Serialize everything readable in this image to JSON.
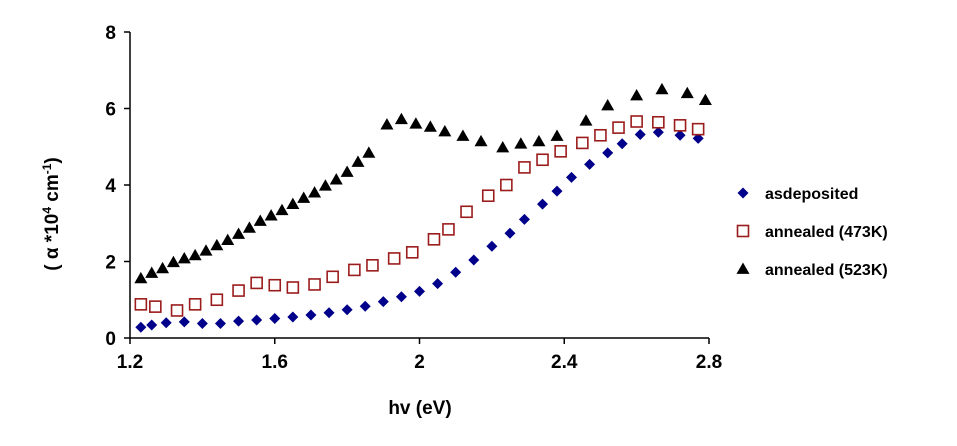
{
  "chart_data": {
    "type": "scatter",
    "xlabel": "hv (eV)",
    "ylabel": {
      "prefix": "( α *10",
      "sup1": "4",
      "mid": " cm",
      "sup2": "-1",
      "suffix": ")"
    },
    "xlim": [
      1.2,
      2.8
    ],
    "ylim": [
      0,
      8
    ],
    "xticks": [
      "1.2",
      "1.6",
      "2",
      "2.4",
      "2.8"
    ],
    "xtick_values": [
      1.2,
      1.6,
      2.0,
      2.4,
      2.8
    ],
    "yticks": [
      "0",
      "2",
      "4",
      "6",
      "8"
    ],
    "ytick_values": [
      0,
      2,
      4,
      6,
      8
    ],
    "grid": false,
    "legend_position": "right",
    "series": [
      {
        "name": "asdeposited",
        "marker": "diamond",
        "color": "#00008B",
        "x": [
          1.23,
          1.26,
          1.3,
          1.35,
          1.4,
          1.45,
          1.5,
          1.55,
          1.6,
          1.65,
          1.7,
          1.75,
          1.8,
          1.85,
          1.9,
          1.95,
          2.0,
          2.05,
          2.1,
          2.15,
          2.2,
          2.25,
          2.29,
          2.34,
          2.38,
          2.42,
          2.47,
          2.52,
          2.56,
          2.61,
          2.66,
          2.72,
          2.77
        ],
        "y": [
          0.28,
          0.34,
          0.4,
          0.42,
          0.38,
          0.38,
          0.44,
          0.47,
          0.51,
          0.55,
          0.6,
          0.66,
          0.74,
          0.83,
          0.95,
          1.08,
          1.22,
          1.42,
          1.72,
          2.04,
          2.4,
          2.74,
          3.1,
          3.5,
          3.84,
          4.2,
          4.54,
          4.84,
          5.08,
          5.32,
          5.38,
          5.3,
          5.22
        ]
      },
      {
        "name": "annealed (473K)",
        "marker": "square-open",
        "color": "#9B1C1C",
        "x": [
          1.23,
          1.27,
          1.33,
          1.38,
          1.44,
          1.5,
          1.55,
          1.6,
          1.65,
          1.71,
          1.76,
          1.82,
          1.87,
          1.93,
          1.98,
          2.04,
          2.08,
          2.13,
          2.19,
          2.24,
          2.29,
          2.34,
          2.39,
          2.45,
          2.5,
          2.55,
          2.6,
          2.66,
          2.72,
          2.77
        ],
        "y": [
          0.88,
          0.82,
          0.72,
          0.88,
          1.0,
          1.24,
          1.44,
          1.38,
          1.32,
          1.4,
          1.6,
          1.78,
          1.9,
          2.08,
          2.24,
          2.58,
          2.84,
          3.3,
          3.72,
          4.0,
          4.46,
          4.66,
          4.88,
          5.1,
          5.3,
          5.5,
          5.66,
          5.64,
          5.56,
          5.46
        ]
      },
      {
        "name": "annealed (523K)",
        "marker": "triangle",
        "color": "#000000",
        "x": [
          1.23,
          1.26,
          1.29,
          1.32,
          1.35,
          1.38,
          1.41,
          1.44,
          1.47,
          1.5,
          1.53,
          1.56,
          1.59,
          1.62,
          1.65,
          1.68,
          1.71,
          1.74,
          1.77,
          1.8,
          1.83,
          1.86,
          1.91,
          1.95,
          1.99,
          2.03,
          2.07,
          2.12,
          2.17,
          2.23,
          2.28,
          2.33,
          2.38,
          2.46,
          2.52,
          2.6,
          2.67,
          2.74,
          2.79
        ],
        "y": [
          1.56,
          1.7,
          1.82,
          1.98,
          2.08,
          2.16,
          2.28,
          2.42,
          2.56,
          2.72,
          2.88,
          3.06,
          3.2,
          3.34,
          3.5,
          3.66,
          3.8,
          3.98,
          4.14,
          4.34,
          4.6,
          4.84,
          5.58,
          5.72,
          5.6,
          5.52,
          5.4,
          5.28,
          5.14,
          4.98,
          5.08,
          5.14,
          5.28,
          5.68,
          6.08,
          6.34,
          6.5,
          6.4,
          6.22
        ]
      }
    ]
  }
}
